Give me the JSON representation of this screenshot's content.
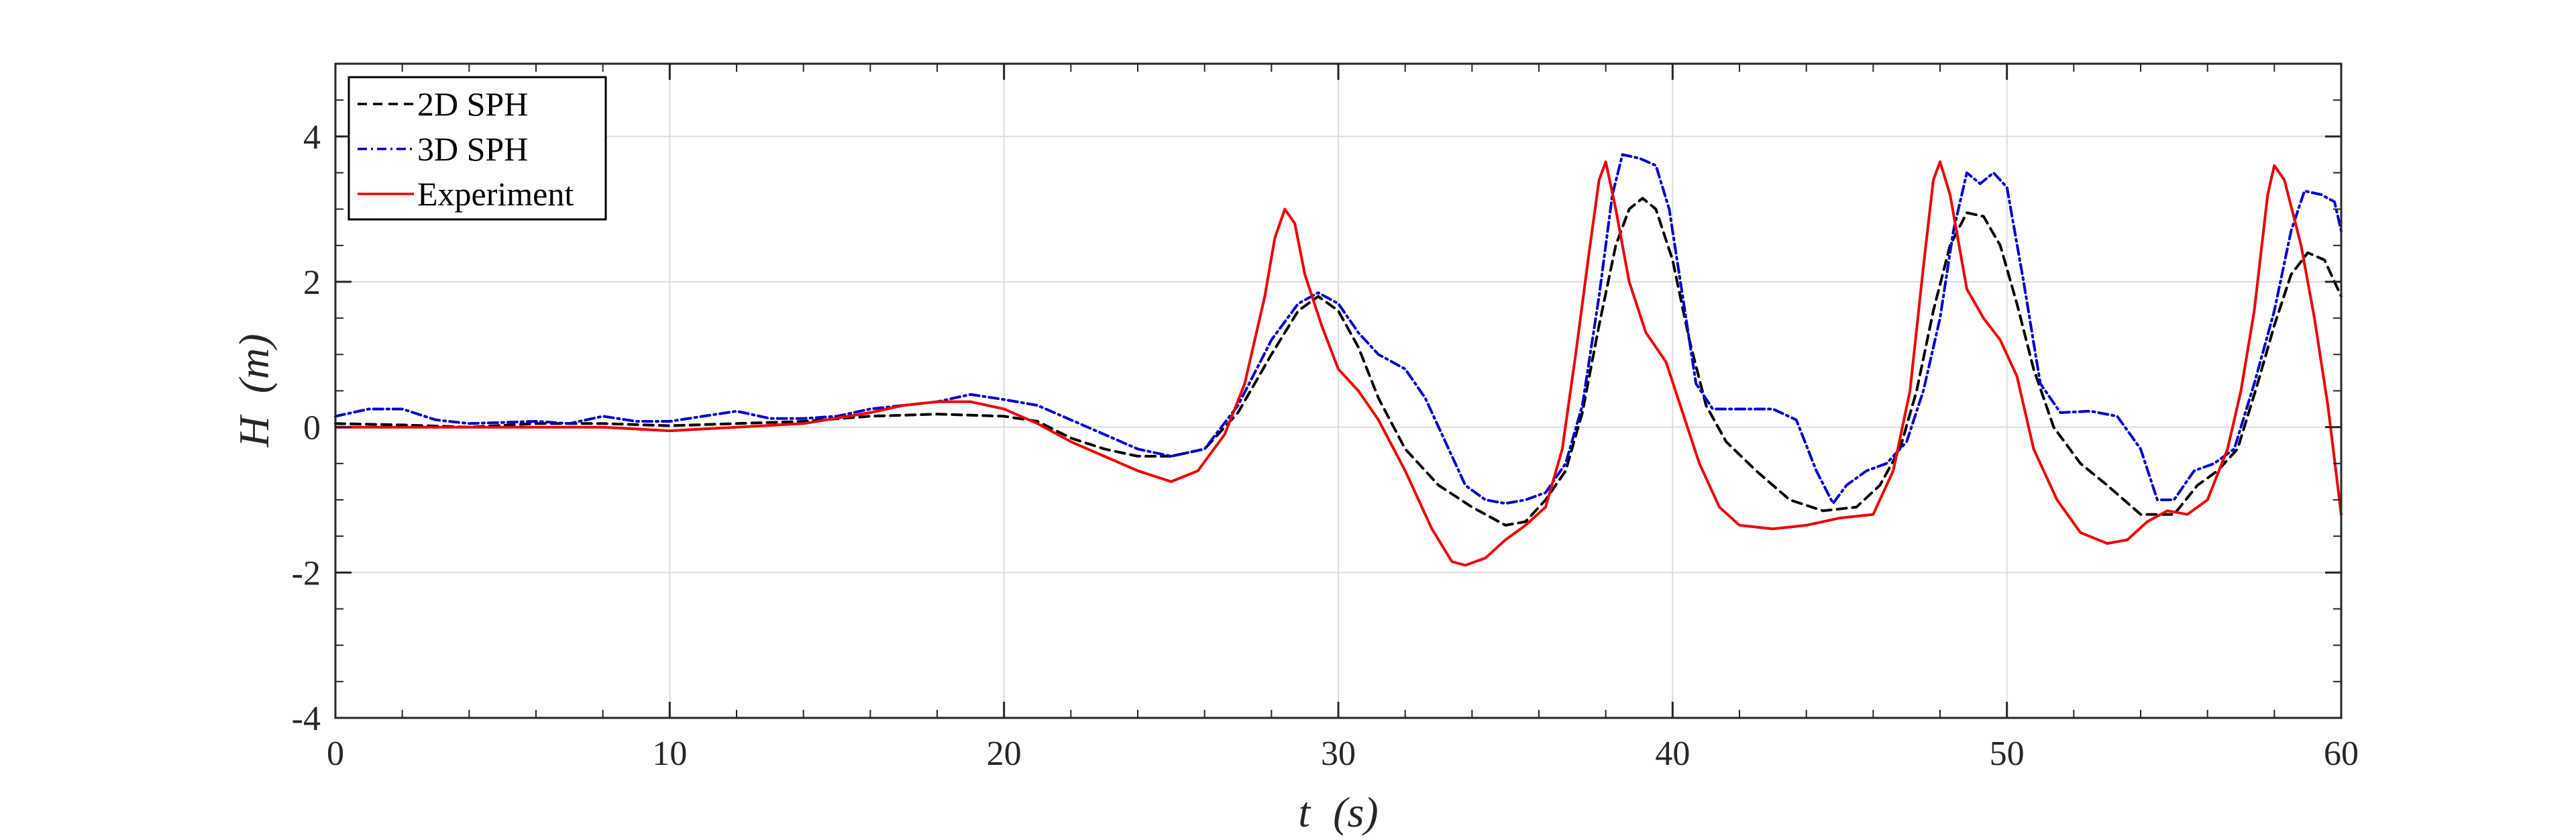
{
  "chart_data": {
    "type": "line",
    "title": "",
    "xlabel": {
      "var": "t",
      "unit": "(s)"
    },
    "ylabel": {
      "var": "H",
      "unit": "(m)"
    },
    "xlim": [
      0,
      60
    ],
    "ylim": [
      -4,
      5
    ],
    "xticks": [
      "0",
      "10",
      "20",
      "30",
      "40",
      "50",
      "60"
    ],
    "yticks": [
      "4",
      "2",
      "0",
      "-2",
      "-4"
    ],
    "grid": true,
    "legend_position": "top-left",
    "series": [
      {
        "name": "2D SPH",
        "color": "#000000",
        "style": "dashed",
        "points": [
          [
            0,
            0.05
          ],
          [
            2,
            0.03
          ],
          [
            4,
            0.0
          ],
          [
            6,
            0.05
          ],
          [
            8,
            0.05
          ],
          [
            10,
            0.02
          ],
          [
            12,
            0.05
          ],
          [
            14,
            0.08
          ],
          [
            16,
            0.15
          ],
          [
            18,
            0.18
          ],
          [
            20,
            0.15
          ],
          [
            21,
            0.08
          ],
          [
            22,
            -0.15
          ],
          [
            23,
            -0.3
          ],
          [
            24,
            -0.4
          ],
          [
            25,
            -0.4
          ],
          [
            26,
            -0.3
          ],
          [
            27,
            0.2
          ],
          [
            28,
            1.0
          ],
          [
            28.8,
            1.6
          ],
          [
            29.4,
            1.8
          ],
          [
            30,
            1.6
          ],
          [
            30.6,
            1.1
          ],
          [
            31.2,
            0.4
          ],
          [
            32,
            -0.3
          ],
          [
            33,
            -0.8
          ],
          [
            34,
            -1.1
          ],
          [
            35,
            -1.35
          ],
          [
            35.6,
            -1.3
          ],
          [
            36.2,
            -1.0
          ],
          [
            36.8,
            -0.6
          ],
          [
            37.3,
            0.2
          ],
          [
            37.8,
            1.4
          ],
          [
            38.3,
            2.5
          ],
          [
            38.7,
            3.0
          ],
          [
            39.1,
            3.15
          ],
          [
            39.5,
            3.0
          ],
          [
            40,
            2.3
          ],
          [
            40.5,
            1.2
          ],
          [
            41,
            0.3
          ],
          [
            41.6,
            -0.2
          ],
          [
            42.5,
            -0.6
          ],
          [
            43.5,
            -1.0
          ],
          [
            44.5,
            -1.15
          ],
          [
            45.5,
            -1.1
          ],
          [
            46.2,
            -0.8
          ],
          [
            46.8,
            -0.3
          ],
          [
            47.3,
            0.5
          ],
          [
            47.8,
            1.6
          ],
          [
            48.3,
            2.5
          ],
          [
            48.8,
            2.95
          ],
          [
            49.3,
            2.9
          ],
          [
            49.8,
            2.5
          ],
          [
            50.3,
            1.7
          ],
          [
            50.8,
            0.8
          ],
          [
            51.4,
            0.0
          ],
          [
            52.2,
            -0.5
          ],
          [
            53,
            -0.8
          ],
          [
            54,
            -1.2
          ],
          [
            55,
            -1.2
          ],
          [
            55.7,
            -0.8
          ],
          [
            56.3,
            -0.6
          ],
          [
            56.9,
            -0.3
          ],
          [
            57.5,
            0.6
          ],
          [
            58,
            1.4
          ],
          [
            58.5,
            2.1
          ],
          [
            59,
            2.4
          ],
          [
            59.5,
            2.3
          ],
          [
            60,
            1.8
          ]
        ]
      },
      {
        "name": "3D SPH",
        "color": "#0000CC",
        "style": "dash-dot",
        "points": [
          [
            0,
            0.15
          ],
          [
            1,
            0.25
          ],
          [
            2,
            0.25
          ],
          [
            3,
            0.1
          ],
          [
            4,
            0.05
          ],
          [
            6,
            0.08
          ],
          [
            7,
            0.05
          ],
          [
            8,
            0.15
          ],
          [
            9,
            0.08
          ],
          [
            10,
            0.08
          ],
          [
            11,
            0.15
          ],
          [
            12,
            0.22
          ],
          [
            13,
            0.12
          ],
          [
            14,
            0.12
          ],
          [
            15,
            0.15
          ],
          [
            16,
            0.25
          ],
          [
            17,
            0.3
          ],
          [
            18,
            0.35
          ],
          [
            19,
            0.45
          ],
          [
            20,
            0.38
          ],
          [
            21,
            0.3
          ],
          [
            22,
            0.1
          ],
          [
            23,
            -0.1
          ],
          [
            24,
            -0.3
          ],
          [
            25,
            -0.4
          ],
          [
            26,
            -0.3
          ],
          [
            27,
            0.3
          ],
          [
            28,
            1.2
          ],
          [
            28.8,
            1.7
          ],
          [
            29.4,
            1.85
          ],
          [
            30,
            1.7
          ],
          [
            30.6,
            1.3
          ],
          [
            31.2,
            1.0
          ],
          [
            32,
            0.8
          ],
          [
            32.6,
            0.4
          ],
          [
            33.2,
            -0.2
          ],
          [
            33.8,
            -0.8
          ],
          [
            34.4,
            -1.0
          ],
          [
            35,
            -1.05
          ],
          [
            35.6,
            -1.0
          ],
          [
            36.2,
            -0.9
          ],
          [
            36.8,
            -0.5
          ],
          [
            37.3,
            0.3
          ],
          [
            37.8,
            1.8
          ],
          [
            38.2,
            3.2
          ],
          [
            38.5,
            3.75
          ],
          [
            39,
            3.7
          ],
          [
            39.5,
            3.6
          ],
          [
            39.9,
            3.0
          ],
          [
            40.3,
            1.8
          ],
          [
            40.7,
            0.6
          ],
          [
            41.2,
            0.25
          ],
          [
            42,
            0.25
          ],
          [
            43,
            0.25
          ],
          [
            43.7,
            0.1
          ],
          [
            44.3,
            -0.6
          ],
          [
            44.8,
            -1.05
          ],
          [
            45.2,
            -0.8
          ],
          [
            45.8,
            -0.6
          ],
          [
            46.4,
            -0.5
          ],
          [
            47,
            -0.2
          ],
          [
            47.5,
            0.5
          ],
          [
            48,
            1.5
          ],
          [
            48.4,
            2.7
          ],
          [
            48.8,
            3.5
          ],
          [
            49.2,
            3.35
          ],
          [
            49.6,
            3.5
          ],
          [
            50,
            3.3
          ],
          [
            50.5,
            2.0
          ],
          [
            51,
            0.6
          ],
          [
            51.6,
            0.2
          ],
          [
            52.5,
            0.22
          ],
          [
            53.3,
            0.15
          ],
          [
            54,
            -0.3
          ],
          [
            54.5,
            -1.0
          ],
          [
            55,
            -1.0
          ],
          [
            55.6,
            -0.6
          ],
          [
            56.2,
            -0.5
          ],
          [
            56.8,
            -0.3
          ],
          [
            57.4,
            0.6
          ],
          [
            58,
            1.6
          ],
          [
            58.5,
            2.7
          ],
          [
            58.9,
            3.25
          ],
          [
            59.4,
            3.2
          ],
          [
            59.8,
            3.1
          ],
          [
            60,
            2.7
          ]
        ]
      },
      {
        "name": "Experiment",
        "color": "#EE0000",
        "style": "solid",
        "points": [
          [
            0,
            0.0
          ],
          [
            2,
            0.0
          ],
          [
            4,
            0.0
          ],
          [
            6,
            0.0
          ],
          [
            8,
            0.0
          ],
          [
            10,
            -0.05
          ],
          [
            12,
            0.0
          ],
          [
            14,
            0.05
          ],
          [
            16,
            0.2
          ],
          [
            17,
            0.3
          ],
          [
            18,
            0.35
          ],
          [
            19,
            0.35
          ],
          [
            20,
            0.25
          ],
          [
            21,
            0.05
          ],
          [
            22,
            -0.2
          ],
          [
            23,
            -0.4
          ],
          [
            24,
            -0.6
          ],
          [
            25,
            -0.75
          ],
          [
            25.8,
            -0.6
          ],
          [
            26.6,
            -0.1
          ],
          [
            27.2,
            0.6
          ],
          [
            27.8,
            1.8
          ],
          [
            28.1,
            2.6
          ],
          [
            28.4,
            3.0
          ],
          [
            28.7,
            2.8
          ],
          [
            29,
            2.1
          ],
          [
            29.5,
            1.4
          ],
          [
            30,
            0.8
          ],
          [
            30.6,
            0.5
          ],
          [
            31.2,
            0.1
          ],
          [
            32,
            -0.6
          ],
          [
            32.8,
            -1.4
          ],
          [
            33.4,
            -1.85
          ],
          [
            33.8,
            -1.9
          ],
          [
            34.4,
            -1.8
          ],
          [
            35,
            -1.55
          ],
          [
            35.6,
            -1.35
          ],
          [
            36.2,
            -1.1
          ],
          [
            36.7,
            -0.3
          ],
          [
            37.1,
            1.0
          ],
          [
            37.5,
            2.4
          ],
          [
            37.8,
            3.4
          ],
          [
            38,
            3.65
          ],
          [
            38.3,
            3.0
          ],
          [
            38.7,
            2.0
          ],
          [
            39.2,
            1.3
          ],
          [
            39.8,
            0.9
          ],
          [
            40.3,
            0.2
          ],
          [
            40.8,
            -0.5
          ],
          [
            41.4,
            -1.1
          ],
          [
            42,
            -1.35
          ],
          [
            43,
            -1.4
          ],
          [
            44,
            -1.35
          ],
          [
            45,
            -1.25
          ],
          [
            46,
            -1.2
          ],
          [
            46.6,
            -0.6
          ],
          [
            47.1,
            0.5
          ],
          [
            47.5,
            2.2
          ],
          [
            47.8,
            3.4
          ],
          [
            48,
            3.65
          ],
          [
            48.3,
            3.2
          ],
          [
            48.8,
            1.9
          ],
          [
            49.3,
            1.5
          ],
          [
            49.8,
            1.2
          ],
          [
            50.3,
            0.7
          ],
          [
            50.8,
            -0.3
          ],
          [
            51.5,
            -1.0
          ],
          [
            52.2,
            -1.45
          ],
          [
            53,
            -1.6
          ],
          [
            53.6,
            -1.55
          ],
          [
            54.2,
            -1.3
          ],
          [
            54.8,
            -1.15
          ],
          [
            55.4,
            -1.2
          ],
          [
            56,
            -1.0
          ],
          [
            56.6,
            -0.3
          ],
          [
            57,
            0.5
          ],
          [
            57.4,
            1.6
          ],
          [
            57.8,
            3.2
          ],
          [
            58,
            3.6
          ],
          [
            58.3,
            3.4
          ],
          [
            58.8,
            2.5
          ],
          [
            59.2,
            1.5
          ],
          [
            59.6,
            0.3
          ],
          [
            60,
            -1.2
          ]
        ]
      }
    ]
  }
}
